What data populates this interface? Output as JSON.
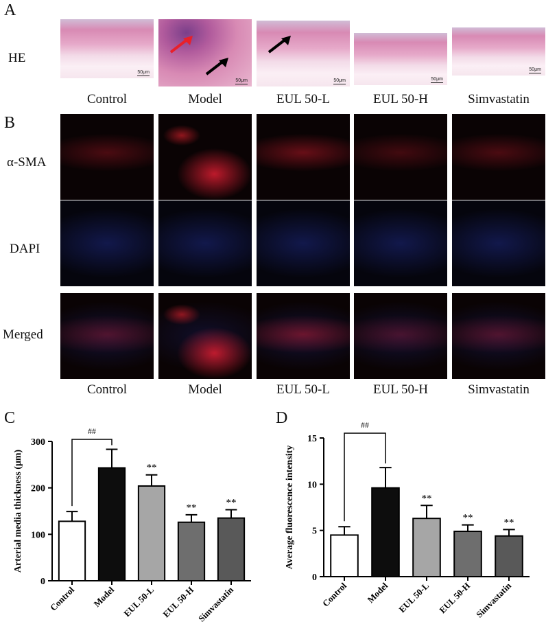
{
  "panel_a": {
    "letter": "A",
    "row_label": "HE",
    "scale_bar": "50μm",
    "groups": [
      "Control",
      "Model",
      "EUL 50-L",
      "EUL 50-H",
      "Simvastatin"
    ]
  },
  "panel_b": {
    "letter": "B",
    "row_labels": [
      "α-SMA",
      "DAPI",
      "Merged"
    ],
    "groups": [
      "Control",
      "Model",
      "EUL 50-L",
      "EUL 50-H",
      "Simvastatin"
    ]
  },
  "colors": {
    "he_pink": "#d88ab4",
    "he_purple": "#7a3f8a",
    "fluor_red": "#c41a2a",
    "fluor_blue": "#2a3cc0",
    "bar_control": "#ffffff",
    "bar_model": "#0d0d0d",
    "bar_eul_l": "#a6a6a6",
    "bar_eul_h": "#6e6e6e",
    "bar_simva": "#595959"
  },
  "chart_data": [
    {
      "panel": "C",
      "type": "bar",
      "categories": [
        "Control",
        "Model",
        "EUL 50-L",
        "EUL 50-H",
        "Simvastatin"
      ],
      "values": [
        128,
        243,
        204,
        126,
        135
      ],
      "errors": [
        21,
        40,
        24,
        16,
        18
      ],
      "significance": [
        "",
        "",
        "**",
        "**",
        "**"
      ],
      "bracket": {
        "from": "Control",
        "to": "Model",
        "label": "##"
      },
      "xlabel": "",
      "ylabel": "Arterial media thickness (μm)",
      "ylim": [
        0,
        300
      ],
      "yticks": [
        0,
        100,
        200,
        300
      ]
    },
    {
      "panel": "D",
      "type": "bar",
      "categories": [
        "Control",
        "Model",
        "EUL 50-L",
        "EUL 50-H",
        "Simvastatin"
      ],
      "values": [
        4.5,
        9.6,
        6.3,
        4.9,
        4.4
      ],
      "errors": [
        0.9,
        2.2,
        1.4,
        0.7,
        0.7
      ],
      "significance": [
        "",
        "",
        "**",
        "**",
        "**"
      ],
      "bracket": {
        "from": "Control",
        "to": "Model",
        "label": "##"
      },
      "xlabel": "",
      "ylabel": "Average fluorescence intensity",
      "ylim": [
        0,
        15
      ],
      "yticks": [
        0,
        5,
        10,
        15
      ]
    }
  ]
}
